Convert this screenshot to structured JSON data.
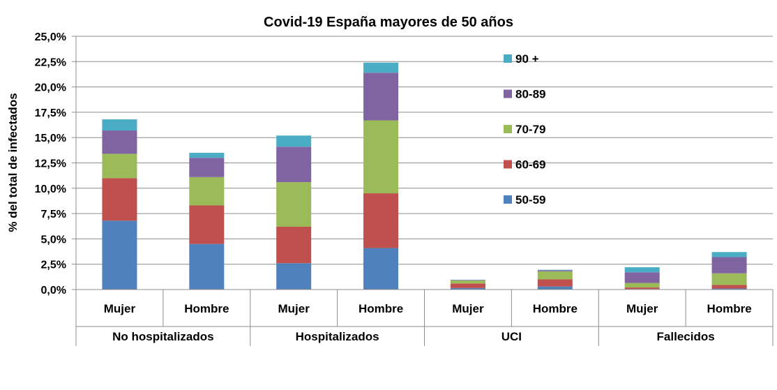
{
  "chart_data": {
    "type": "bar",
    "stacked": true,
    "title": "Covid-19 España mayores de 50 años",
    "xlabel": "",
    "ylabel": "% del total de infectados",
    "ylim": [
      0,
      25
    ],
    "yticks": [
      "0,0%",
      "2,5%",
      "5,0%",
      "7,5%",
      "10,0%",
      "12,5%",
      "15,0%",
      "17,5%",
      "20,0%",
      "22,5%",
      "25,0%"
    ],
    "grid": true,
    "legend_position": "top-right",
    "groups": [
      "No hospitalizados",
      "Hospitalizados",
      "UCI",
      "Fallecidos"
    ],
    "categories": [
      "Mujer",
      "Hombre",
      "Mujer",
      "Hombre",
      "Mujer",
      "Hombre",
      "Mujer",
      "Hombre"
    ],
    "series": [
      {
        "name": "50-59",
        "color": "#4f81bd",
        "values": [
          6.8,
          4.5,
          2.6,
          4.1,
          0.15,
          0.3,
          0.05,
          0.1
        ]
      },
      {
        "name": "60-69",
        "color": "#c0504d",
        "values": [
          4.2,
          3.8,
          3.6,
          5.4,
          0.45,
          0.7,
          0.15,
          0.35
        ]
      },
      {
        "name": "70-79",
        "color": "#9bbb59",
        "values": [
          2.4,
          2.8,
          4.4,
          7.2,
          0.3,
          0.8,
          0.45,
          1.15
        ]
      },
      {
        "name": "80-89",
        "color": "#8064a2",
        "values": [
          2.3,
          1.9,
          3.5,
          4.7,
          0.05,
          0.1,
          1.05,
          1.6
        ]
      },
      {
        "name": "90 +",
        "color": "#4bacc6",
        "values": [
          1.1,
          0.5,
          1.1,
          1.0,
          0.02,
          0.05,
          0.5,
          0.5
        ]
      }
    ]
  }
}
